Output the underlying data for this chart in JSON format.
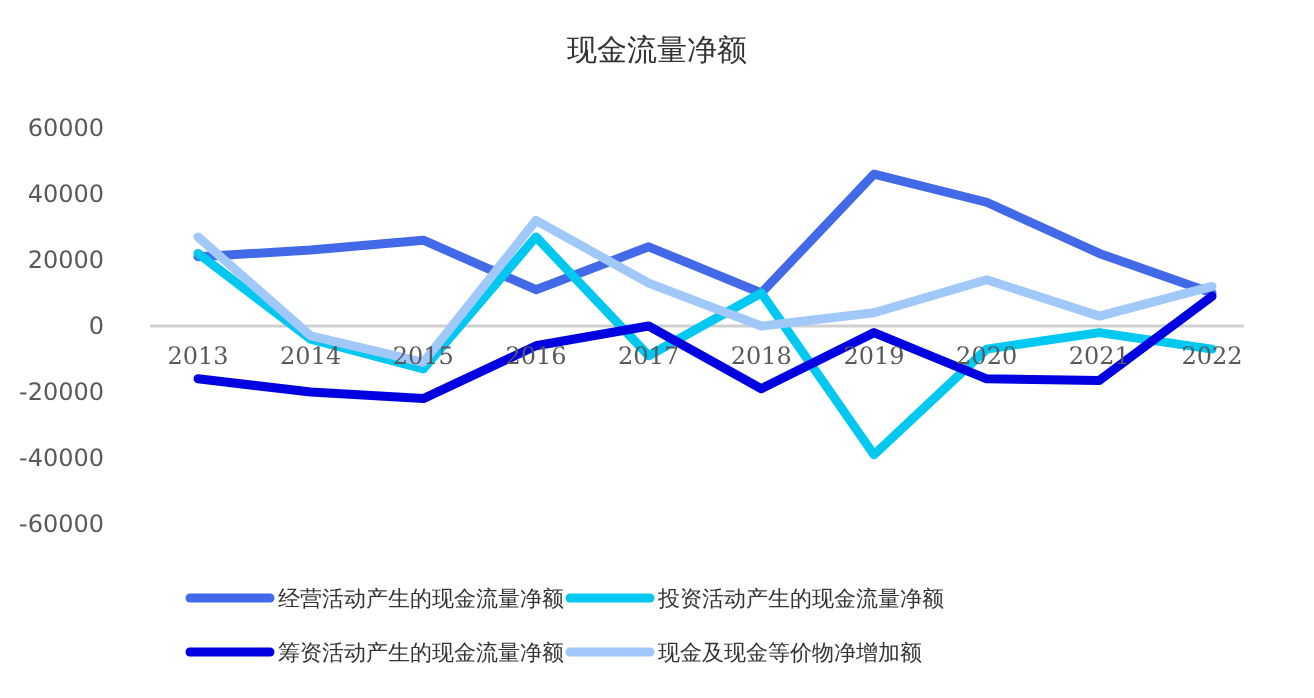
{
  "chart_data": {
    "type": "line",
    "title": "现金流量净额",
    "categories": [
      "2013",
      "2014",
      "2015",
      "2016",
      "2017",
      "2018",
      "2019",
      "2020",
      "2021",
      "2022"
    ],
    "series": [
      {
        "name": "经营活动产生的现金流量净额",
        "color": "#4169e8",
        "values": [
          21000,
          23000,
          26000,
          11000,
          24000,
          10000,
          46000,
          37500,
          22000,
          10000
        ]
      },
      {
        "name": "投资活动产生的现金流量净额",
        "color": "#00c8f0",
        "values": [
          22000,
          -4000,
          -13000,
          27000,
          -9000,
          10000,
          -39000,
          -7000,
          -2000,
          -7000
        ]
      },
      {
        "name": "筹资活动产生的现金流量净额",
        "color": "#0000e0",
        "values": [
          -16000,
          -20000,
          -22000,
          -6000,
          0,
          -19000,
          -2000,
          -16000,
          -16500,
          9000
        ]
      },
      {
        "name": "现金及现金等价物净增加额",
        "color": "#a0c8f8",
        "values": [
          27000,
          -3000,
          -11000,
          32000,
          13000,
          0,
          4000,
          14000,
          3000,
          12000
        ]
      }
    ],
    "ylim": [
      -60000,
      60000
    ],
    "yticks": [
      -60000,
      -40000,
      -20000,
      0,
      20000,
      40000,
      60000
    ],
    "grid": false,
    "legend": "bottom",
    "marker": "none",
    "line_style": "solid"
  }
}
